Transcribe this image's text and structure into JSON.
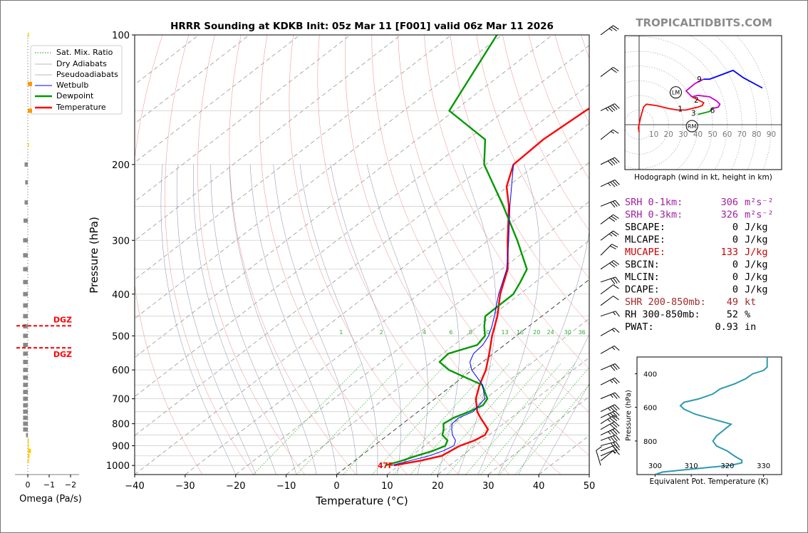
{
  "header": {
    "title": "HRRR Sounding at KDKB Init: 05z Mar 11 [F001] valid 06z Mar 11 2026",
    "brand": "TROPICALTIDBITS.COM"
  },
  "chart_data": [
    {
      "type": "line",
      "name": "skew-t",
      "xlabel": "Temperature (°C)",
      "ylabel": "Pressure (hPa)",
      "xlim": [
        -40,
        50
      ],
      "ylim": [
        1050,
        100
      ],
      "x_ticks": [
        "−40",
        "−30",
        "−20",
        "−10",
        "0",
        "10",
        "20",
        "30",
        "40",
        "50"
      ],
      "y_ticks": [
        "100",
        "200",
        "300",
        "400",
        "500",
        "600",
        "700",
        "800",
        "900",
        "1000"
      ],
      "y_scale": "log",
      "grid": true,
      "legend": {
        "position": "top-left",
        "entries": [
          "Sat. Mix. Ratio",
          "Dry Adiabats",
          "Pseudoadiabats",
          "Wetbulb",
          "Dewpoint",
          "Temperature"
        ]
      },
      "mixing_ratio_labels": [
        "1",
        "2",
        "4",
        "6",
        "8",
        "10",
        "13",
        "16",
        "20",
        "24",
        "30",
        "36"
      ],
      "surface_label": "47F",
      "series": [
        {
          "name": "Temperature",
          "color": "#ff0000",
          "points": [
            [
              1000,
              9.0
            ],
            [
              990,
              10.5
            ],
            [
              975,
              13.0
            ],
            [
              950,
              16.0
            ],
            [
              925,
              16.5
            ],
            [
              900,
              17.0
            ],
            [
              875,
              18.5
            ],
            [
              850,
              19.2
            ],
            [
              825,
              18.4
            ],
            [
              800,
              16.2
            ],
            [
              775,
              13.9
            ],
            [
              750,
              11.7
            ],
            [
              700,
              8.1
            ],
            [
              650,
              5.3
            ],
            [
              600,
              2.7
            ],
            [
              550,
              -0.8
            ],
            [
              500,
              -4.8
            ],
            [
              450,
              -8.8
            ],
            [
              400,
              -13.9
            ],
            [
              350,
              -18.8
            ],
            [
              300,
              -26.2
            ],
            [
              250,
              -34.7
            ],
            [
              225,
              -40.2
            ],
            [
              200,
              -44.5
            ],
            [
              175,
              -45.0
            ],
            [
              150,
              -44.0
            ],
            [
              125,
              -42.0
            ],
            [
              100,
              -40.5
            ]
          ]
        },
        {
          "name": "Dewpoint",
          "color": "#009900",
          "points": [
            [
              1000,
              7.3
            ],
            [
              990,
              8.0
            ],
            [
              980,
              9.0
            ],
            [
              950,
              11.0
            ],
            [
              925,
              13.0
            ],
            [
              900,
              14.1
            ],
            [
              875,
              13.2
            ],
            [
              850,
              10.8
            ],
            [
              825,
              9.6
            ],
            [
              800,
              8.1
            ],
            [
              775,
              8.6
            ],
            [
              750,
              10.1
            ],
            [
              725,
              11.2
            ],
            [
              700,
              10.4
            ],
            [
              650,
              5.8
            ],
            [
              600,
              -4.6
            ],
            [
              575,
              -8.5
            ],
            [
              550,
              -8.9
            ],
            [
              525,
              -5.4
            ],
            [
              500,
              -6.2
            ],
            [
              475,
              -8.8
            ],
            [
              450,
              -11.2
            ],
            [
              400,
              -11.3
            ],
            [
              375,
              -13.0
            ],
            [
              350,
              -15.0
            ],
            [
              300,
              -24.3
            ],
            [
              250,
              -35.8
            ],
            [
              200,
              -50.3
            ],
            [
              175,
              -56.5
            ],
            [
              150,
              -71.0
            ],
            [
              125,
              -75.5
            ],
            [
              100,
              -81.0
            ]
          ]
        },
        {
          "name": "Wetbulb",
          "color": "#0000ff",
          "points": [
            [
              1000,
              8.5
            ],
            [
              950,
              13.5
            ],
            [
              925,
              15.0
            ],
            [
              900,
              15.8
            ],
            [
              875,
              14.8
            ],
            [
              850,
              12.8
            ],
            [
              825,
              11.2
            ],
            [
              800,
              9.8
            ],
            [
              775,
              9.6
            ],
            [
              750,
              10.9
            ],
            [
              700,
              9.9
            ],
            [
              650,
              5.9
            ],
            [
              600,
              -0.1
            ],
            [
              575,
              -2.5
            ],
            [
              550,
              -3.9
            ],
            [
              525,
              -4.3
            ],
            [
              500,
              -5.5
            ],
            [
              475,
              -7.3
            ],
            [
              450,
              -9.4
            ],
            [
              400,
              -14.2
            ],
            [
              350,
              -19.0
            ],
            [
              300,
              -26.0
            ],
            [
              250,
              -34.5
            ],
            [
              200,
              -44.5
            ]
          ]
        }
      ]
    },
    {
      "type": "line",
      "name": "omega",
      "xlabel": "Omega (Pa/s)",
      "x_ticks": [
        "0",
        "−1",
        "−2"
      ],
      "dgz_label": "DGZ",
      "dgz_pressures": [
        474,
        533
      ],
      "values": [
        {
          "p": 100,
          "w": 0.05,
          "c": "#ffcc00"
        },
        {
          "p": 130,
          "w": 0.2,
          "c": "#ff9900"
        },
        {
          "p": 150,
          "w": 0.2,
          "c": "#ff9900"
        },
        {
          "p": 180,
          "w": 0.02,
          "c": "#ffcc00"
        },
        {
          "p": 200,
          "w": -0.15,
          "c": "#888888"
        },
        {
          "p": 220,
          "w": -0.12,
          "c": "#888888"
        },
        {
          "p": 245,
          "w": -0.15,
          "c": "#888888"
        },
        {
          "p": 270,
          "w": -0.2,
          "c": "#888888"
        },
        {
          "p": 300,
          "w": -0.22,
          "c": "#888888"
        },
        {
          "p": 325,
          "w": -0.22,
          "c": "#888888"
        },
        {
          "p": 350,
          "w": -0.22,
          "c": "#888888"
        },
        {
          "p": 375,
          "w": -0.22,
          "c": "#888888"
        },
        {
          "p": 400,
          "w": -0.22,
          "c": "#888888"
        },
        {
          "p": 425,
          "w": -0.22,
          "c": "#888888"
        },
        {
          "p": 450,
          "w": -0.22,
          "c": "#888888"
        },
        {
          "p": 475,
          "w": -0.22,
          "c": "#888888"
        },
        {
          "p": 500,
          "w": -0.22,
          "c": "#888888"
        },
        {
          "p": 525,
          "w": -0.22,
          "c": "#888888"
        },
        {
          "p": 550,
          "w": -0.22,
          "c": "#888888"
        },
        {
          "p": 575,
          "w": -0.22,
          "c": "#888888"
        },
        {
          "p": 600,
          "w": -0.22,
          "c": "#888888"
        },
        {
          "p": 625,
          "w": -0.22,
          "c": "#888888"
        },
        {
          "p": 650,
          "w": -0.22,
          "c": "#888888"
        },
        {
          "p": 675,
          "w": -0.22,
          "c": "#888888"
        },
        {
          "p": 700,
          "w": -0.22,
          "c": "#888888"
        },
        {
          "p": 725,
          "w": -0.22,
          "c": "#888888"
        },
        {
          "p": 750,
          "w": -0.22,
          "c": "#888888"
        },
        {
          "p": 775,
          "w": -0.22,
          "c": "#888888"
        },
        {
          "p": 800,
          "w": -0.22,
          "c": "#888888"
        },
        {
          "p": 825,
          "w": -0.22,
          "c": "#888888"
        },
        {
          "p": 850,
          "w": -0.08,
          "c": "#888888"
        },
        {
          "p": 875,
          "w": 0.02,
          "c": "#ffcc00"
        },
        {
          "p": 900,
          "w": 0.05,
          "c": "#ffcc00"
        },
        {
          "p": 925,
          "w": 0.15,
          "c": "#ffcc00"
        },
        {
          "p": 950,
          "w": 0.08,
          "c": "#ffcc00"
        },
        {
          "p": 975,
          "w": 0.03,
          "c": "#ffcc00"
        }
      ]
    },
    {
      "type": "line",
      "name": "hodograph",
      "caption": "Hodograph (wind in kt, height in km)",
      "ring_labels": [
        "10",
        "20",
        "30",
        "40",
        "50",
        "60",
        "70",
        "80",
        "90"
      ],
      "markers": [
        "LM",
        "RM"
      ],
      "height_labels": [
        "1",
        "2",
        "3",
        "6",
        "9"
      ],
      "segments": [
        {
          "color": "#ff0000",
          "points": [
            [
              0,
              -5
            ],
            [
              -0.5,
              -2
            ],
            [
              1,
              5
            ],
            [
              3,
              12
            ],
            [
              5,
              14
            ],
            [
              12,
              13
            ],
            [
              20,
              11
            ],
            [
              26,
              10
            ],
            [
              32,
              10
            ],
            [
              36,
              11
            ],
            [
              40,
              12
            ],
            [
              43,
              13
            ],
            [
              44,
              15
            ],
            [
              40,
              17
            ],
            [
              36,
              19
            ]
          ]
        },
        {
          "color": "#cc00cc",
          "points": [
            [
              36,
              19
            ],
            [
              40,
              20
            ],
            [
              48,
              19
            ],
            [
              53,
              16
            ],
            [
              55,
              14
            ],
            [
              54,
              12
            ],
            [
              50,
              11
            ]
          ]
        },
        {
          "color": "#009900",
          "points": [
            [
              40,
              7
            ],
            [
              48,
              9
            ],
            [
              50,
              11
            ]
          ]
        },
        {
          "color": "#cc00cc",
          "points": [
            [
              36,
              19
            ],
            [
              32,
              23
            ],
            [
              38,
              28
            ],
            [
              44,
              31
            ]
          ]
        },
        {
          "color": "#0000ff",
          "points": [
            [
              44,
              31
            ],
            [
              48,
              31
            ],
            [
              56,
              34
            ],
            [
              64,
              37
            ],
            [
              71,
              32
            ],
            [
              84,
              25
            ]
          ]
        }
      ]
    },
    {
      "type": "line",
      "name": "theta-e",
      "xlabel": "Equivalent Pot. Temperature (K)",
      "ylabel": "Pressure (hPa)",
      "x_ticks": [
        "300",
        "310",
        "320",
        "330"
      ],
      "y_ticks": [
        "400",
        "600",
        "800"
      ],
      "xlim": [
        295,
        335
      ],
      "ylim": [
        1000,
        300
      ],
      "color": "#2e9ab0",
      "points": [
        [
          300,
          1000
        ],
        [
          302,
          985
        ],
        [
          309,
          970
        ],
        [
          316,
          955
        ],
        [
          321,
          945
        ],
        [
          324,
          930
        ],
        [
          324,
          915
        ],
        [
          322,
          890
        ],
        [
          320,
          860
        ],
        [
          317,
          830
        ],
        [
          316,
          800
        ],
        [
          317,
          770
        ],
        [
          319,
          735
        ],
        [
          321,
          700
        ],
        [
          316,
          670
        ],
        [
          311,
          640
        ],
        [
          308,
          610
        ],
        [
          307,
          590
        ],
        [
          308,
          570
        ],
        [
          312,
          550
        ],
        [
          316,
          520
        ],
        [
          318,
          490
        ],
        [
          322,
          460
        ],
        [
          325,
          430
        ],
        [
          327,
          400
        ],
        [
          330,
          380
        ],
        [
          331,
          360
        ],
        [
          331,
          300
        ]
      ]
    }
  ],
  "indices": [
    {
      "label": "SRH 0-1km:",
      "value": "306",
      "unit": "m²s⁻²",
      "color": "#a020a0"
    },
    {
      "label": "SRH 0-3km:",
      "value": "326",
      "unit": "m²s⁻²",
      "color": "#a020a0"
    },
    {
      "label": "SBCAPE:",
      "value": "0",
      "unit": "J/kg",
      "color": "#000000"
    },
    {
      "label": "MLCAPE:",
      "value": "0",
      "unit": "J/kg",
      "color": "#000000"
    },
    {
      "label": "MUCAPE:",
      "value": "133",
      "unit": "J/kg",
      "color": "#cc0000"
    },
    {
      "label": "SBCIN:",
      "value": "0",
      "unit": "J/kg",
      "color": "#000000"
    },
    {
      "label": "MLCIN:",
      "value": "0",
      "unit": "J/kg",
      "color": "#000000"
    },
    {
      "label": "DCAPE:",
      "value": "0",
      "unit": "J/kg",
      "color": "#000000"
    },
    {
      "label": "SHR 200-850mb:",
      "value": "49",
      "unit": "kt",
      "color": "#a52a2a"
    },
    {
      "label": "RH 300-850mb:",
      "value": "52",
      "unit": "%",
      "color": "#000000"
    },
    {
      "label": "PWAT:",
      "value": "0.93",
      "unit": "in",
      "color": "#000000"
    }
  ],
  "wind_barbs": [
    {
      "p": 100,
      "u": 20,
      "v": 15
    },
    {
      "p": 125,
      "u": 16,
      "v": 12
    },
    {
      "p": 150,
      "u": 40,
      "v": 20
    },
    {
      "p": 175,
      "u": 10,
      "v": 8
    },
    {
      "p": 200,
      "u": 36,
      "v": 18
    },
    {
      "p": 225,
      "u": 30,
      "v": 14
    },
    {
      "p": 250,
      "u": 30,
      "v": 12
    },
    {
      "p": 275,
      "u": 24,
      "v": 18
    },
    {
      "p": 300,
      "u": 20,
      "v": 15
    },
    {
      "p": 325,
      "u": 14,
      "v": 14
    },
    {
      "p": 350,
      "u": 24,
      "v": 16
    },
    {
      "p": 375,
      "u": 30,
      "v": 10
    },
    {
      "p": 400,
      "u": 8,
      "v": 6
    },
    {
      "p": 425,
      "u": 8,
      "v": 6
    },
    {
      "p": 450,
      "u": 12,
      "v": 4
    },
    {
      "p": 500,
      "u": 14,
      "v": 8
    },
    {
      "p": 550,
      "u": 14,
      "v": 8
    },
    {
      "p": 600,
      "u": 28,
      "v": 12
    },
    {
      "p": 650,
      "u": 24,
      "v": 12
    },
    {
      "p": 700,
      "u": 24,
      "v": 10
    },
    {
      "p": 750,
      "u": 30,
      "v": 15
    },
    {
      "p": 775,
      "u": 30,
      "v": 15
    },
    {
      "p": 800,
      "u": 28,
      "v": 18
    },
    {
      "p": 825,
      "u": 28,
      "v": 16
    },
    {
      "p": 850,
      "u": 30,
      "v": 14
    },
    {
      "p": 875,
      "u": 32,
      "v": 12
    },
    {
      "p": 900,
      "u": 30,
      "v": 8
    },
    {
      "p": 925,
      "u": 20,
      "v": 8
    },
    {
      "p": 950,
      "u": 14,
      "v": 6
    },
    {
      "p": 975,
      "u": 5,
      "v": 4
    },
    {
      "p": 1000,
      "u": -3,
      "v": 10
    }
  ]
}
